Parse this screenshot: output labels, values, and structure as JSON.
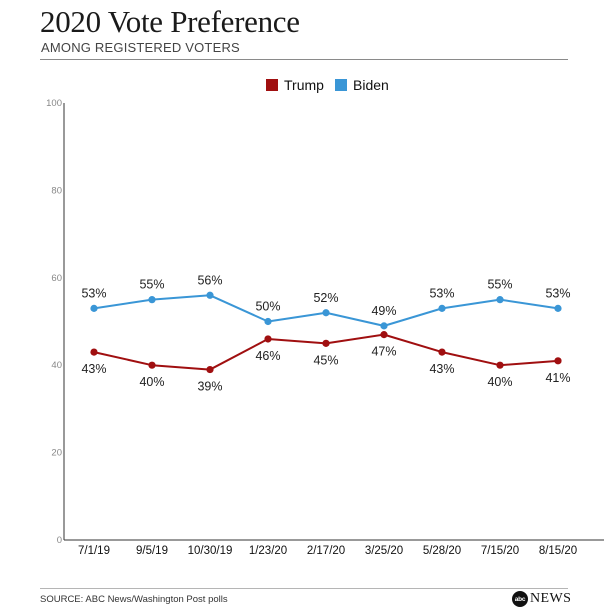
{
  "header": {
    "title": "2020 Vote Preference",
    "subtitle": "AMONG REGISTERED VOTERS"
  },
  "footer": {
    "source": "SOURCE: ABC News/Washington Post polls",
    "logo_text": "NEWS",
    "logo_mark": "abc"
  },
  "colors": {
    "trump": "#a00f10",
    "biden": "#3a96d6",
    "axis": "#333333",
    "background": "#ffffff"
  },
  "chart_data": {
    "type": "line",
    "title": "2020 Vote Preference",
    "subtitle": "AMONG REGISTERED VOTERS",
    "categories": [
      "7/1/19",
      "9/5/19",
      "10/30/19",
      "1/23/20",
      "2/17/20",
      "3/25/20",
      "5/28/20",
      "7/15/20",
      "8/15/20"
    ],
    "series": [
      {
        "name": "Trump",
        "color": "#a00f10",
        "values": [
          43,
          40,
          39,
          46,
          45,
          47,
          43,
          40,
          41
        ],
        "labels": [
          "43%",
          "40%",
          "39%",
          "46%",
          "45%",
          "47%",
          "43%",
          "40%",
          "41%"
        ]
      },
      {
        "name": "Biden",
        "color": "#3a96d6",
        "values": [
          53,
          55,
          56,
          50,
          52,
          49,
          53,
          55,
          53
        ],
        "labels": [
          "53%",
          "55%",
          "56%",
          "50%",
          "52%",
          "49%",
          "53%",
          "55%",
          "53%"
        ]
      }
    ],
    "ylim": [
      0,
      100
    ],
    "yticks": [
      "0",
      "20",
      "40",
      "60",
      "80",
      "100"
    ],
    "legend_position": "top-center",
    "grid": false,
    "xlabel": "",
    "ylabel": ""
  }
}
